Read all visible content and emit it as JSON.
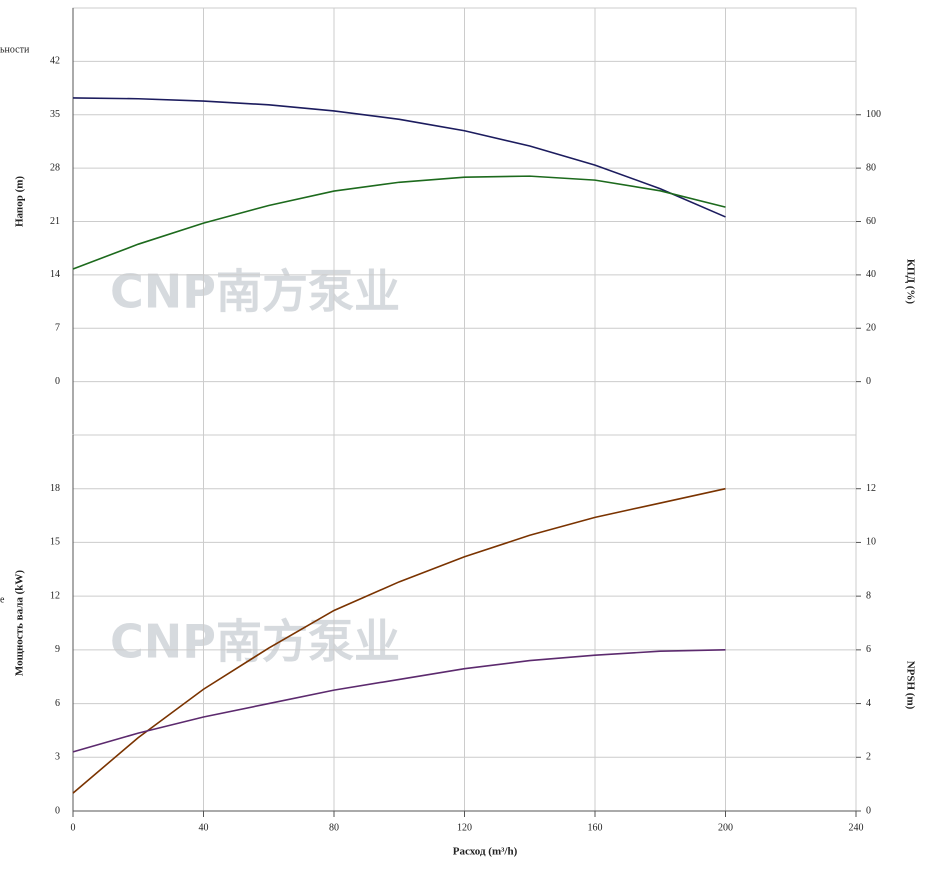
{
  "chart_data": [
    {
      "type": "line",
      "ylabel": "Напор (m)",
      "y2label": "КПД (%)",
      "fragment": "ьности",
      "watermark": "CNP南方泵业",
      "x": [
        0,
        20,
        40,
        60,
        80,
        100,
        120,
        140,
        160,
        180,
        200
      ],
      "xlim": [
        0,
        240
      ],
      "xticks": [
        0,
        40,
        80,
        120,
        160,
        200,
        240
      ],
      "ylim": [
        -7,
        49
      ],
      "yticks": [
        0,
        7,
        14,
        21,
        28,
        35,
        42
      ],
      "y2lim": [
        -20,
        140
      ],
      "y2ticks": [
        0,
        20,
        40,
        60,
        80,
        100
      ],
      "grid": true,
      "series": [
        {
          "name": "Напор",
          "color": "#1c1c5e",
          "values": [
            37.2,
            37.1,
            36.8,
            36.3,
            35.5,
            34.4,
            32.9,
            30.9,
            28.4,
            25.3,
            21.6
          ]
        },
        {
          "name": "КПД",
          "color": "#1d6a1d",
          "axis": "y2",
          "values": [
            42.2,
            51.5,
            59.4,
            66,
            71.4,
            74.7,
            76.6,
            77.0,
            75.5,
            71.5,
            65.4
          ]
        }
      ]
    },
    {
      "type": "line",
      "ylabel": "Мощность вала (kW)",
      "y2label": "NPSH (m)",
      "xlabel": "Расход (m³/h)",
      "fragment": "е",
      "watermark": "CNP南方泵业",
      "x": [
        0,
        20,
        40,
        60,
        80,
        100,
        120,
        140,
        160,
        180,
        200
      ],
      "xlim": [
        0,
        240
      ],
      "xticks": [
        0,
        40,
        80,
        120,
        160,
        200,
        240
      ],
      "ylim": [
        0,
        21
      ],
      "yticks": [
        0,
        3,
        6,
        9,
        12,
        15,
        18
      ],
      "y2lim": [
        0,
        14
      ],
      "y2ticks": [
        0,
        2,
        4,
        6,
        8,
        10,
        12
      ],
      "grid": true,
      "series": [
        {
          "name": "Мощность вала",
          "color": "#7a3300",
          "values": [
            1.0,
            4.1,
            6.8,
            9.1,
            11.2,
            12.8,
            14.2,
            15.4,
            16.4,
            17.2,
            18.0
          ]
        },
        {
          "name": "NPSH",
          "color": "#5c2a6e",
          "axis": "y2",
          "values": [
            2.2,
            2.9,
            3.5,
            4.0,
            4.5,
            4.9,
            5.3,
            5.6,
            5.8,
            5.95,
            6.0
          ]
        }
      ]
    }
  ]
}
